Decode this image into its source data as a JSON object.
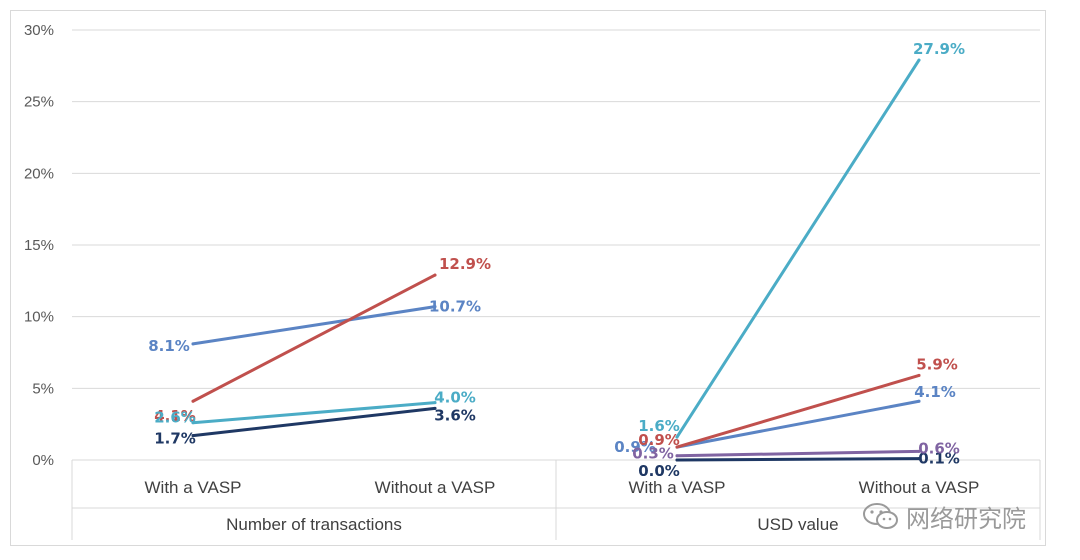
{
  "chart_data": {
    "type": "line",
    "yaxis": {
      "ticks": [
        "0%",
        "5%",
        "10%",
        "15%",
        "20%",
        "25%",
        "30%"
      ],
      "ylim": [
        0,
        30
      ]
    },
    "groups": [
      {
        "label": "Number of transactions",
        "categories": [
          "With a VASP",
          "Without a VASP"
        ]
      },
      {
        "label": "USD value",
        "categories": [
          "With a VASP",
          "Without a VASP"
        ]
      }
    ],
    "series": [
      {
        "color": "#5b84c4",
        "values": [
          [
            8.1,
            10.7
          ],
          [
            0.9,
            4.1
          ]
        ],
        "labels": [
          [
            "8.1%",
            "10.7%"
          ],
          [
            "0.9%",
            "4.1%"
          ]
        ]
      },
      {
        "color": "#c0504d",
        "values": [
          [
            4.1,
            12.9
          ],
          [
            0.9,
            5.9
          ]
        ],
        "labels": [
          [
            "4.1%",
            "12.9%"
          ],
          [
            "0.9%",
            "5.9%"
          ]
        ]
      },
      {
        "color": "#4bacc6",
        "values": [
          [
            2.6,
            4.0
          ],
          [
            1.6,
            27.9
          ]
        ],
        "labels": [
          [
            "2.6%",
            "4.0%"
          ],
          [
            "1.6%",
            "27.9%"
          ]
        ]
      },
      {
        "color": "#1f3864",
        "values": [
          [
            1.7,
            3.6
          ],
          [
            0.0,
            0.1
          ]
        ],
        "labels": [
          [
            "1.7%",
            "3.6%"
          ],
          [
            "0.0%",
            "0.1%"
          ]
        ]
      },
      {
        "color": "#8064a2",
        "values": [
          null,
          [
            0.3,
            0.6
          ]
        ],
        "labels": [
          null,
          [
            "0.3%",
            "0.6%"
          ]
        ]
      }
    ],
    "grid": true,
    "legend": "none"
  },
  "watermark": {
    "text": "网络研究院",
    "icon": "wechat-icon"
  }
}
